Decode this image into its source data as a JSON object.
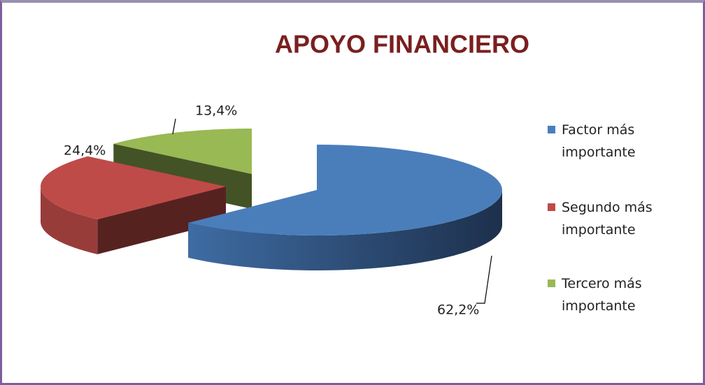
{
  "chart_data": {
    "type": "pie3d",
    "title": "APOYO FINANCIERO",
    "categories": [
      "Factor más importante",
      "Segundo más importante",
      "Tercero más importante"
    ],
    "values": [
      62.2,
      24.4,
      13.4
    ],
    "value_labels": [
      "62,2%",
      "24,4%",
      "13,4%"
    ],
    "colors": [
      "#4a7ebb",
      "#be4b48",
      "#98b954"
    ],
    "legend": "right"
  }
}
